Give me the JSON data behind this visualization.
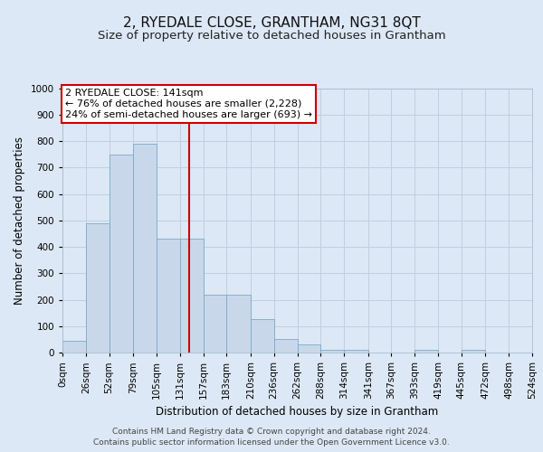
{
  "title": "2, RYEDALE CLOSE, GRANTHAM, NG31 8QT",
  "subtitle": "Size of property relative to detached houses in Grantham",
  "xlabel": "Distribution of detached houses by size in Grantham",
  "ylabel": "Number of detached properties",
  "bin_labels": [
    "0sqm",
    "26sqm",
    "52sqm",
    "79sqm",
    "105sqm",
    "131sqm",
    "157sqm",
    "183sqm",
    "210sqm",
    "236sqm",
    "262sqm",
    "288sqm",
    "314sqm",
    "341sqm",
    "367sqm",
    "393sqm",
    "419sqm",
    "445sqm",
    "472sqm",
    "498sqm",
    "524sqm"
  ],
  "bar_heights": [
    45,
    490,
    750,
    790,
    430,
    430,
    220,
    220,
    125,
    50,
    30,
    10,
    10,
    0,
    0,
    10,
    0,
    10,
    0,
    0
  ],
  "bar_color": "#c8d8ea",
  "bar_edge_color": "#7aaac8",
  "vline_x": 141,
  "vline_color": "#cc0000",
  "annotation_text": "2 RYEDALE CLOSE: 141sqm\n← 76% of detached houses are smaller (2,228)\n24% of semi-detached houses are larger (693) →",
  "annotation_box_color": "#ffffff",
  "annotation_box_edge": "#cc0000",
  "ylim": [
    0,
    1000
  ],
  "yticks": [
    0,
    100,
    200,
    300,
    400,
    500,
    600,
    700,
    800,
    900,
    1000
  ],
  "bin_edges": [
    0,
    26,
    52,
    79,
    105,
    131,
    157,
    183,
    210,
    236,
    262,
    288,
    314,
    341,
    367,
    393,
    419,
    445,
    472,
    498,
    524
  ],
  "footer_line1": "Contains HM Land Registry data © Crown copyright and database right 2024.",
  "footer_line2": "Contains public sector information licensed under the Open Government Licence v3.0.",
  "background_color": "#dce8f5",
  "axes_bg_color": "#dce8f5",
  "grid_color": "#c0cfe0",
  "title_fontsize": 11,
  "subtitle_fontsize": 9.5,
  "axis_label_fontsize": 8.5,
  "tick_fontsize": 7.5,
  "footer_fontsize": 6.5,
  "annot_fontsize": 8
}
